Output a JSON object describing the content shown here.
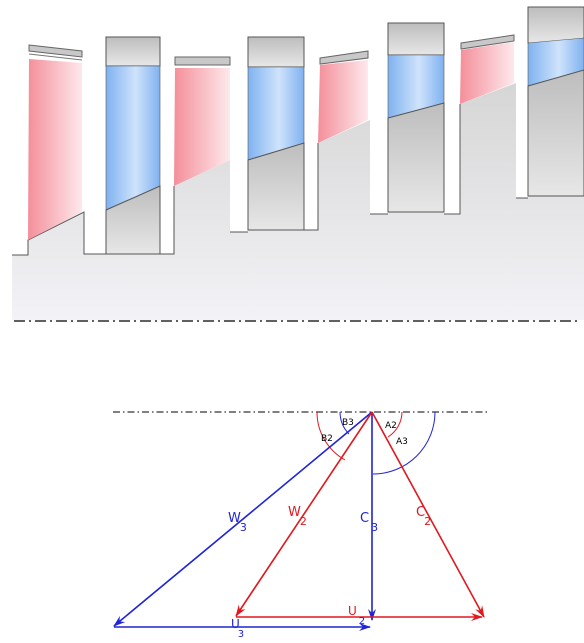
{
  "colors": {
    "rotor": "#f5a0a8",
    "stator": "#8fbcf2",
    "casing": "#c9c9c9",
    "outline": "#555555",
    "red": "#e0191f",
    "blue": "#1f24d4",
    "axis": "#000000"
  },
  "angles": {
    "b3": "B3",
    "b2": "B2",
    "a2": "A2",
    "a3": "A3"
  },
  "vectors": {
    "w3": {
      "main": "W",
      "sub": "3"
    },
    "w2": {
      "main": "W",
      "sub": "2"
    },
    "c3": {
      "main": "C",
      "sub": "3"
    },
    "c2": {
      "main": "C",
      "sub": "2"
    },
    "u": {
      "main": "U",
      "sub": "2"
    },
    "u3": {
      "main": "U",
      "sub": "3"
    }
  }
}
